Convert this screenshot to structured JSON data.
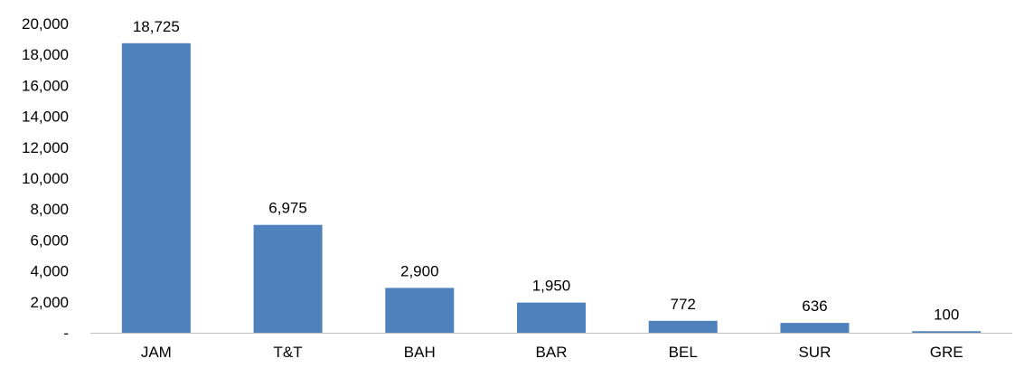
{
  "colors": {
    "bar": "#4f81bd",
    "axis": "#bfbfbf",
    "text": "#000000",
    "background": "#ffffff"
  },
  "chart_data": {
    "type": "bar",
    "title": "",
    "xlabel": "",
    "ylabel": "",
    "categories": [
      "JAM",
      "T&T",
      "BAH",
      "BAR",
      "BEL",
      "SUR",
      "GRE"
    ],
    "values": [
      18725,
      6975,
      2900,
      1950,
      772,
      636,
      100
    ],
    "data_labels": [
      "18,725",
      "6,975",
      "2,900",
      "1,950",
      "772",
      "636",
      "100"
    ],
    "ylim": [
      0,
      20000
    ],
    "y_ticks": [
      0,
      2000,
      4000,
      6000,
      8000,
      10000,
      12000,
      14000,
      16000,
      18000,
      20000
    ],
    "y_tick_labels": [
      "-",
      "2,000",
      "4,000",
      "6,000",
      "8,000",
      "10,000",
      "12,000",
      "14,000",
      "16,000",
      "18,000",
      "20,000"
    ],
    "grid": false,
    "legend": "none"
  }
}
